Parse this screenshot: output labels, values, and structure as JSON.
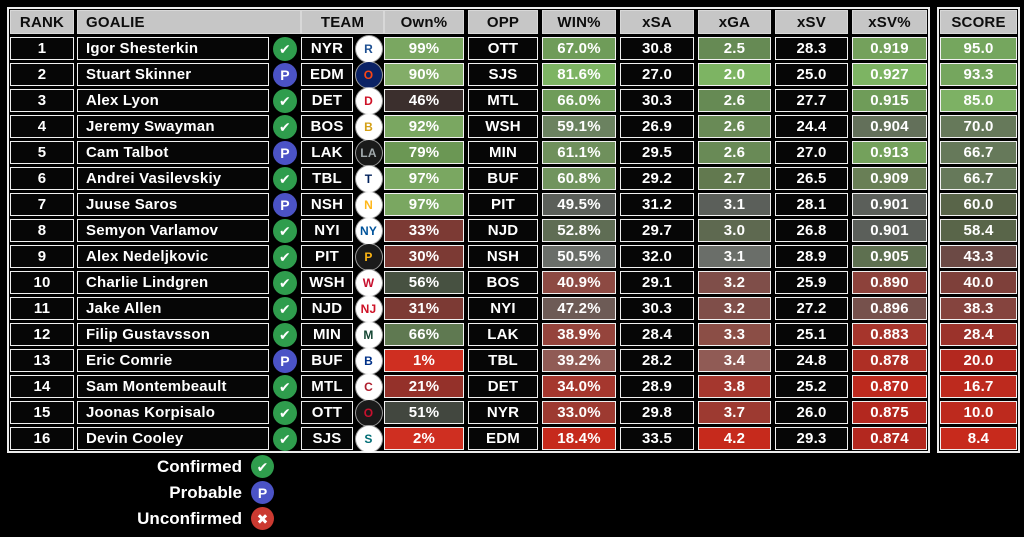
{
  "table": {
    "headers": {
      "rank": "RANK",
      "goalie": "GOALIE",
      "team": "TEAM",
      "own": "Own%",
      "opp": "OPP",
      "win": "WIN%",
      "xsa": "xSA",
      "xga": "xGA",
      "xsv": "xSV",
      "xsvpct": "xSV%",
      "score": "SCORE"
    },
    "rows": [
      {
        "rank": "1",
        "goalie": "Igor Shesterkin",
        "status": "confirmed",
        "team": "NYR",
        "logo_letter": "R",
        "logo_fg": "#1d4f91",
        "logo_bg": "#ffffff",
        "own": "99%",
        "own_bg": "#7aa761",
        "opp": "OTT",
        "win": "67.0%",
        "win_bg": "#6f9c59",
        "xsa": "30.8",
        "xga": "2.5",
        "xga_bg": "#668a54",
        "xsv": "28.3",
        "xsvpct": "0.919",
        "xsvpct_bg": "#74a15c",
        "score": "95.0",
        "score_bg": "#75a65e"
      },
      {
        "rank": "2",
        "goalie": "Stuart Skinner",
        "status": "probable",
        "team": "EDM",
        "logo_letter": "O",
        "logo_fg": "#fa4616",
        "logo_bg": "#0b2265",
        "own": "90%",
        "own_bg": "#83ad68",
        "opp": "SJS",
        "win": "81.6%",
        "win_bg": "#7db463",
        "xsa": "27.0",
        "xga": "2.0",
        "xga_bg": "#7db463",
        "xsv": "25.0",
        "xsvpct": "0.927",
        "xsvpct_bg": "#7db463",
        "score": "93.3",
        "score_bg": "#75a65e"
      },
      {
        "rank": "3",
        "goalie": "Alex Lyon",
        "status": "confirmed",
        "team": "DET",
        "logo_letter": "D",
        "logo_fg": "#ce1126",
        "logo_bg": "#ffffff",
        "own": "46%",
        "own_bg": "#3b2f2d",
        "opp": "MTL",
        "win": "66.0%",
        "win_bg": "#6f9c59",
        "xsa": "30.3",
        "xga": "2.6",
        "xga_bg": "#668a54",
        "xsv": "27.7",
        "xsvpct": "0.915",
        "xsvpct_bg": "#6f9c59",
        "score": "85.0",
        "score_bg": "#7db164"
      },
      {
        "rank": "4",
        "goalie": "Jeremy Swayman",
        "status": "confirmed",
        "team": "BOS",
        "logo_letter": "B",
        "logo_fg": "#d4a017",
        "logo_bg": "#ffffff",
        "own": "92%",
        "own_bg": "#7aa761",
        "opp": "WSH",
        "win": "59.1%",
        "win_bg": "#6b8260",
        "xsa": "26.9",
        "xga": "2.6",
        "xga_bg": "#698a56",
        "xsv": "24.4",
        "xsvpct": "0.904",
        "xsvpct_bg": "#63705a",
        "score": "70.0",
        "score_bg": "#66795a"
      },
      {
        "rank": "5",
        "goalie": "Cam Talbot",
        "status": "probable",
        "team": "LAK",
        "logo_letter": "LA",
        "logo_fg": "#a2aaad",
        "logo_bg": "#1a1a1a",
        "own": "79%",
        "own_bg": "#6b9754",
        "opp": "MIN",
        "win": "61.1%",
        "win_bg": "#6f905c",
        "xsa": "29.5",
        "xga": "2.6",
        "xga_bg": "#698a56",
        "xsv": "27.0",
        "xsvpct": "0.913",
        "xsvpct_bg": "#74a15c",
        "score": "66.7",
        "score_bg": "#66795a"
      },
      {
        "rank": "6",
        "goalie": "Andrei Vasilevskiy",
        "status": "confirmed",
        "team": "TBL",
        "logo_letter": "T",
        "logo_fg": "#00205b",
        "logo_bg": "#ffffff",
        "own": "97%",
        "own_bg": "#7aa761",
        "opp": "BUF",
        "win": "60.8%",
        "win_bg": "#71945e",
        "xsa": "29.2",
        "xga": "2.7",
        "xga_bg": "#62794f",
        "xsv": "26.5",
        "xsvpct": "0.909",
        "xsvpct_bg": "#697f56",
        "score": "66.7",
        "score_bg": "#66795a"
      },
      {
        "rank": "7",
        "goalie": "Juuse Saros",
        "status": "probable",
        "team": "NSH",
        "logo_letter": "N",
        "logo_fg": "#ffb81c",
        "logo_bg": "#ffffff",
        "own": "97%",
        "own_bg": "#7aa761",
        "opp": "PIT",
        "win": "49.5%",
        "win_bg": "#5b5f5a",
        "xsa": "31.2",
        "xga": "3.1",
        "xga_bg": "#5b5f5a",
        "xsv": "28.1",
        "xsvpct": "0.901",
        "xsvpct_bg": "#5b5f5a",
        "score": "60.0",
        "score_bg": "#596549"
      },
      {
        "rank": "8",
        "goalie": "Semyon Varlamov",
        "status": "confirmed",
        "team": "NYI",
        "logo_letter": "NY",
        "logo_fg": "#00539b",
        "logo_bg": "#ffffff",
        "own": "33%",
        "own_bg": "#7c3a34",
        "opp": "NJD",
        "win": "52.8%",
        "win_bg": "#5f6d54",
        "xsa": "29.7",
        "xga": "3.0",
        "xga_bg": "#5e6950",
        "xsv": "26.8",
        "xsvpct": "0.901",
        "xsvpct_bg": "#5b5f5a",
        "score": "58.4",
        "score_bg": "#596549"
      },
      {
        "rank": "9",
        "goalie": "Alex Nedeljkovic",
        "status": "confirmed",
        "team": "PIT",
        "logo_letter": "P",
        "logo_fg": "#fcb514",
        "logo_bg": "#1a1a1a",
        "own": "30%",
        "own_bg": "#7c3a34",
        "opp": "NSH",
        "win": "50.5%",
        "win_bg": "#6a6e69",
        "xsa": "32.0",
        "xga": "3.1",
        "xga_bg": "#6a6e69",
        "xsv": "28.9",
        "xsvpct": "0.905",
        "xsvpct_bg": "#5e7050",
        "score": "43.3",
        "score_bg": "#6c4a45"
      },
      {
        "rank": "10",
        "goalie": "Charlie Lindgren",
        "status": "confirmed",
        "team": "WSH",
        "logo_letter": "W",
        "logo_fg": "#c8102e",
        "logo_bg": "#ffffff",
        "own": "56%",
        "own_bg": "#475141",
        "opp": "BOS",
        "win": "40.9%",
        "win_bg": "#8d4a43",
        "xsa": "29.1",
        "xga": "3.2",
        "xga_bg": "#7f4e49",
        "xsv": "25.9",
        "xsvpct": "0.890",
        "xsvpct_bg": "#8d423b",
        "score": "40.0",
        "score_bg": "#7e403a"
      },
      {
        "rank": "11",
        "goalie": "Jake Allen",
        "status": "confirmed",
        "team": "NJD",
        "logo_letter": "NJ",
        "logo_fg": "#ce1126",
        "logo_bg": "#ffffff",
        "own": "31%",
        "own_bg": "#7c3a34",
        "opp": "NYI",
        "win": "47.2%",
        "win_bg": "#6d5b56",
        "xsa": "30.3",
        "xga": "3.2",
        "xga_bg": "#7f4e49",
        "xsv": "27.2",
        "xsvpct": "0.896",
        "xsvpct_bg": "#76514c",
        "score": "38.3",
        "score_bg": "#85443e"
      },
      {
        "rank": "12",
        "goalie": "Filip Gustavsson",
        "status": "confirmed",
        "team": "MIN",
        "logo_letter": "M",
        "logo_fg": "#154734",
        "logo_bg": "#ffffff",
        "own": "66%",
        "own_bg": "#5f7951",
        "opp": "LAK",
        "win": "38.9%",
        "win_bg": "#95443c",
        "xsa": "28.4",
        "xga": "3.3",
        "xga_bg": "#8b4e46",
        "xsv": "25.1",
        "xsvpct": "0.883",
        "xsvpct_bg": "#a6352c",
        "score": "28.4",
        "score_bg": "#9b332b"
      },
      {
        "rank": "13",
        "goalie": "Eric Comrie",
        "status": "probable",
        "team": "BUF",
        "logo_letter": "B",
        "logo_fg": "#003087",
        "logo_bg": "#ffffff",
        "own": "1%",
        "own_bg": "#cf2f21",
        "opp": "TBL",
        "win": "39.2%",
        "win_bg": "#905b55",
        "xsa": "28.2",
        "xga": "3.4",
        "xga_bg": "#905b55",
        "xsv": "24.8",
        "xsvpct": "0.878",
        "xsvpct_bg": "#ae2f25",
        "score": "20.0",
        "score_bg": "#b3281f"
      },
      {
        "rank": "14",
        "goalie": "Sam Montembeault",
        "status": "confirmed",
        "team": "MTL",
        "logo_letter": "C",
        "logo_fg": "#af1e2d",
        "logo_bg": "#ffffff",
        "own": "21%",
        "own_bg": "#94312a",
        "opp": "DET",
        "win": "34.0%",
        "win_bg": "#a5372e",
        "xsa": "28.9",
        "xga": "3.8",
        "xga_bg": "#a5372e",
        "xsv": "25.2",
        "xsvpct": "0.870",
        "xsvpct_bg": "#bd2a1e",
        "score": "16.7",
        "score_bg": "#bd2a1e"
      },
      {
        "rank": "15",
        "goalie": "Joonas Korpisalo",
        "status": "confirmed",
        "team": "OTT",
        "logo_letter": "O",
        "logo_fg": "#c8102e",
        "logo_bg": "#1a1a1a",
        "own": "51%",
        "own_bg": "#42473f",
        "opp": "NYR",
        "win": "33.0%",
        "win_bg": "#9d3a31",
        "xsa": "29.8",
        "xga": "3.7",
        "xga_bg": "#9d3a31",
        "xsv": "26.0",
        "xsvpct": "0.875",
        "xsvpct_bg": "#b3281f",
        "score": "10.0",
        "score_bg": "#bd2a1e"
      },
      {
        "rank": "16",
        "goalie": "Devin Cooley",
        "status": "confirmed",
        "team": "SJS",
        "logo_letter": "S",
        "logo_fg": "#006d75",
        "logo_bg": "#ffffff",
        "own": "2%",
        "own_bg": "#cf2f21",
        "opp": "EDM",
        "win": "18.4%",
        "win_bg": "#c62a1c",
        "xsa": "33.5",
        "xga": "4.2",
        "xga_bg": "#c62a1c",
        "xsv": "29.3",
        "xsvpct": "0.874",
        "xsvpct_bg": "#b3281f",
        "score": "8.4",
        "score_bg": "#c72a1c"
      }
    ]
  },
  "status_icons": {
    "confirmed": {
      "glyph": "✔",
      "color": "#2f9d4d"
    },
    "probable": {
      "glyph": "P",
      "color": "#4b53c6"
    },
    "unconfirmed": {
      "glyph": "✖",
      "color": "#cb3a31"
    }
  },
  "legend": {
    "items": [
      {
        "label": "Confirmed",
        "status": "confirmed"
      },
      {
        "label": "Probable",
        "status": "probable"
      },
      {
        "label": "Unconfirmed",
        "status": "unconfirmed"
      }
    ]
  },
  "colors": {
    "header_bg": "#c6c6c6",
    "row_bg": "#060606",
    "good": "#7db463",
    "neutral": "#5b5f5a",
    "bad": "#c62a1c"
  }
}
